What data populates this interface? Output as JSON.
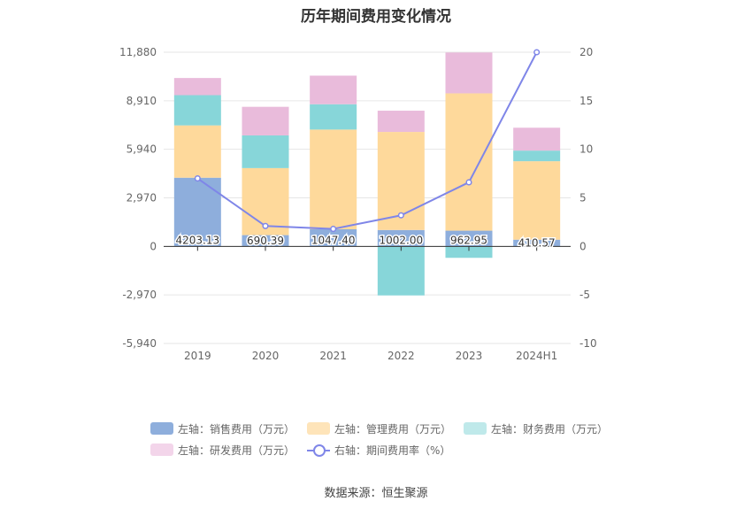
{
  "title": "历年期间费用变化情况",
  "source": "数据来源：恒生聚源",
  "colors": {
    "sales": "#8eaedc",
    "mgmt": "#fed99b",
    "finance": "#87d6d9",
    "rnd": "#e9bbdb",
    "rate": "#7f86e8"
  },
  "legend": [
    {
      "label": "左轴：销售费用（万元）",
      "color": "#8eaedc",
      "kind": "bar"
    },
    {
      "label": "左轴：管理费用（万元）",
      "color": "#fee4b9",
      "kind": "bar"
    },
    {
      "label": "左轴：财务费用（万元）",
      "color": "#bfe9ea",
      "kind": "bar"
    },
    {
      "label": "左轴：研发费用（万元）",
      "color": "#f3d5ea",
      "kind": "bar"
    },
    {
      "label": "右轴：期间费用率（%）",
      "color": "#7f86e8",
      "kind": "line"
    }
  ],
  "chart_data": {
    "type": "bar",
    "stacked": true,
    "categories": [
      "2019",
      "2020",
      "2021",
      "2022",
      "2023",
      "2024H1"
    ],
    "y_left": {
      "ticks": [
        "11,880",
        "8,910",
        "5,940",
        "2,970",
        "0",
        "-2,970",
        "-5,940"
      ],
      "tick_values": [
        11880,
        8910,
        5940,
        2970,
        0,
        -2970,
        -5940
      ],
      "ylim": [
        -5940,
        11880
      ]
    },
    "y_right": {
      "ticks": [
        "20",
        "15",
        "10",
        "5",
        "0",
        "-5",
        "-10"
      ],
      "tick_values": [
        20,
        15,
        10,
        5,
        0,
        -5,
        -10
      ],
      "ylim": [
        -10,
        20
      ]
    },
    "series": [
      {
        "name": "左轴：销售费用（万元）",
        "key": "sales",
        "values": [
          4203.13,
          690.39,
          1047.4,
          1002.0,
          962.95,
          410.57
        ],
        "labels": [
          "4203.13",
          "690.39",
          "1047.40",
          "1002.00",
          "962.95",
          "410.57"
        ]
      },
      {
        "name": "左轴：管理费用（万元）",
        "key": "mgmt",
        "values": [
          3200,
          4100,
          6100,
          6000,
          8400,
          4800
        ]
      },
      {
        "name": "左轴：财务费用（万元）",
        "key": "finance",
        "values": [
          1850,
          2000,
          1550,
          -3000,
          -700,
          650
        ]
      },
      {
        "name": "左轴：研发费用（万元）",
        "key": "rnd",
        "values": [
          1050,
          1750,
          1750,
          1300,
          2500,
          1400
        ]
      }
    ],
    "line": {
      "name": "右轴：期间费用率（%）",
      "values": [
        7.0,
        2.1,
        1.8,
        3.2,
        6.6,
        20.0
      ]
    },
    "grid": true,
    "legend_position": "bottom"
  }
}
